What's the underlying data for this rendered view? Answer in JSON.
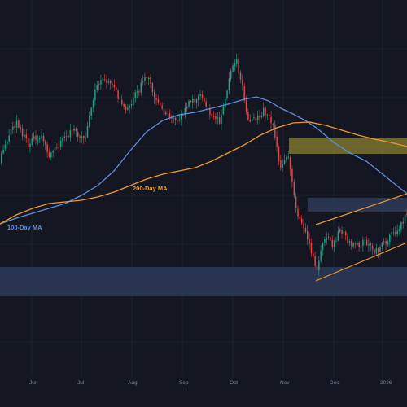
{
  "colors": {
    "background": "#141722",
    "grid": "#1c202c",
    "candle_up": "#1fa387",
    "candle_down": "#e2474a",
    "ma100": "#5b8fe0",
    "ma200": "#f0982a",
    "zone_blue": "#3a4f78",
    "zone_yellow": "#8a8230",
    "channel": "#f0982a",
    "axis_text": "#7c8494"
  },
  "chart_data": {
    "type": "candlestick",
    "title": "",
    "xlabel": "",
    "ylabel": "",
    "grid": true,
    "x_ticks": [
      "Jun",
      "Jul",
      "Aug",
      "Sep",
      "Oct",
      "Nov",
      "Dec",
      "2026"
    ],
    "price_anchors": {
      "x": [
        0,
        10,
        20,
        35,
        50,
        60,
        75,
        90,
        105,
        118,
        125,
        140,
        155,
        170,
        180,
        190,
        200,
        210,
        220,
        232,
        245,
        258,
        270,
        282,
        290,
        296,
        305,
        315,
        325,
        335,
        345,
        355,
        365,
        375,
        385,
        390,
        398,
        408,
        420,
        430,
        440,
        450,
        460,
        470,
        480,
        490,
        500
      ],
      "y": [
        200,
        170,
        150,
        178,
        165,
        190,
        175,
        160,
        170,
        110,
        98,
        108,
        135,
        112,
        90,
        115,
        135,
        148,
        145,
        128,
        115,
        138,
        148,
        98,
        70,
        95,
        150,
        145,
        135,
        150,
        205,
        195,
        260,
        285,
        318,
        335,
        290,
        300,
        282,
        300,
        302,
        296,
        310,
        300,
        292,
        278,
        265
      ]
    },
    "series": [
      {
        "name": "100-Day MA",
        "x": [
          0,
          20,
          40,
          60,
          80,
          100,
          120,
          140,
          160,
          180,
          200,
          220,
          240,
          260,
          280,
          300,
          315,
          330,
          345,
          360,
          375,
          390,
          410,
          430,
          450,
          470,
          490,
          500
        ],
        "y": [
          275,
          268,
          262,
          256,
          250,
          240,
          228,
          210,
          185,
          162,
          148,
          141,
          138,
          133,
          128,
          122,
          119,
          124,
          133,
          140,
          148,
          158,
          175,
          188,
          198,
          214,
          230,
          238
        ]
      },
      {
        "name": "200-Day MA",
        "x": [
          0,
          20,
          40,
          60,
          80,
          100,
          120,
          140,
          160,
          180,
          200,
          220,
          240,
          260,
          280,
          300,
          320,
          340,
          360,
          380,
          400,
          420,
          440,
          460,
          480,
          500
        ],
        "y": [
          275,
          264,
          256,
          250,
          248,
          246,
          242,
          236,
          228,
          220,
          214,
          210,
          206,
          198,
          188,
          178,
          166,
          157,
          151,
          150,
          154,
          160,
          166,
          171,
          175,
          180
        ]
      }
    ],
    "annotations": [
      {
        "kind": "zone",
        "color": "zone_yellow",
        "x0": 355,
        "x1": 500,
        "y0": 169,
        "y1": 189
      },
      {
        "kind": "zone",
        "color": "zone_blue",
        "x0": 378,
        "x1": 500,
        "y0": 243,
        "y1": 260
      },
      {
        "kind": "zone",
        "color": "zone_blue",
        "x0": 0,
        "x1": 500,
        "y0": 328,
        "y1": 364
      },
      {
        "kind": "line",
        "color": "channel",
        "x0": 388,
        "y0": 276,
        "x1": 500,
        "y1": 238
      },
      {
        "kind": "line",
        "color": "channel",
        "x0": 388,
        "y0": 345,
        "x1": 500,
        "y1": 298
      }
    ],
    "labels": [
      {
        "text": "200-Day MA",
        "series": "200-Day MA"
      },
      {
        "text": "100-Day MA",
        "series": "100-Day MA"
      }
    ]
  }
}
